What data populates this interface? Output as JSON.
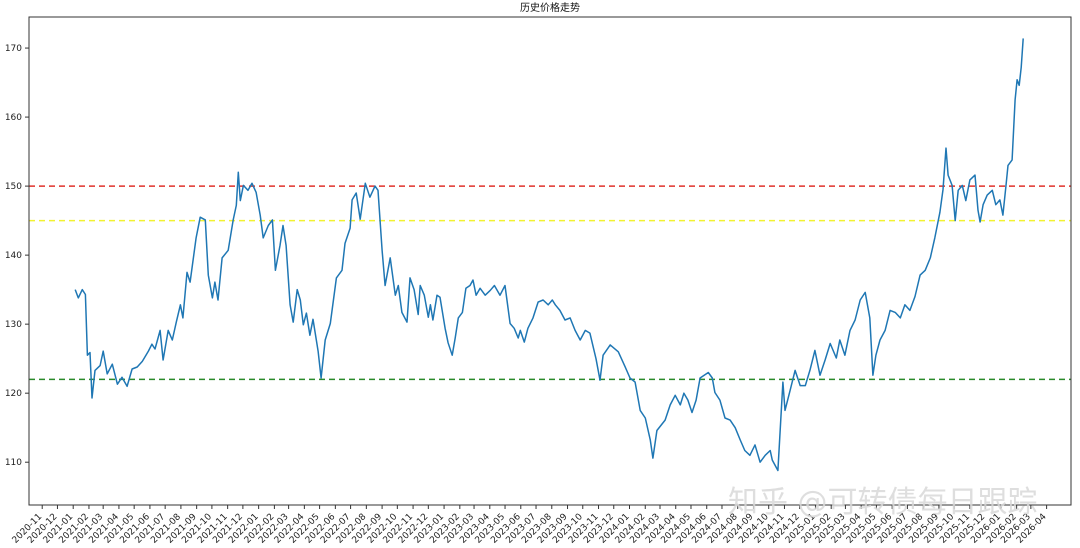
{
  "chart_data": {
    "type": "line",
    "title": "历史价格走势",
    "xlabel": "",
    "ylabel": "",
    "xlim": [
      "2020-10-06",
      "2026-05-19"
    ],
    "ylim": [
      103.8,
      174.5
    ],
    "y_ticks": [
      110,
      120,
      130,
      140,
      150,
      160,
      170
    ],
    "x_ticks": [
      "2020-11",
      "2020-12",
      "2021-01",
      "2021-02",
      "2021-03",
      "2021-04",
      "2021-05",
      "2021-06",
      "2021-07",
      "2021-08",
      "2021-09",
      "2021-10",
      "2021-11",
      "2021-12",
      "2022-01",
      "2022-02",
      "2022-03",
      "2022-04",
      "2022-05",
      "2022-06",
      "2022-07",
      "2022-08",
      "2022-09",
      "2022-10",
      "2022-11",
      "2022-12",
      "2023-01",
      "2023-02",
      "2023-03",
      "2023-04",
      "2023-05",
      "2023-06",
      "2023-07",
      "2023-08",
      "2023-09",
      "2023-10",
      "2023-11",
      "2023-12",
      "2024-01",
      "2024-02",
      "2024-03",
      "2024-04",
      "2024-05",
      "2024-06",
      "2024-07",
      "2024-08",
      "2024-09",
      "2024-10",
      "2024-11",
      "2024-12",
      "2025-01",
      "2025-02",
      "2025-03",
      "2025-04",
      "2025-05",
      "2025-06",
      "2025-07",
      "2025-08",
      "2025-09",
      "2025-10",
      "2025-11",
      "2025-12",
      "2026-01",
      "2026-02",
      "2026-03",
      "2026-04"
    ],
    "grid": false,
    "series": [
      {
        "color": "#1f77b4",
        "points": [
          [
            "2021-01-05",
            135.0
          ],
          [
            "2021-01-11",
            133.8
          ],
          [
            "2021-01-19",
            135.0
          ],
          [
            "2021-01-25",
            134.3
          ],
          [
            "2021-01-29",
            125.5
          ],
          [
            "2021-02-03",
            125.9
          ],
          [
            "2021-02-07",
            119.3
          ],
          [
            "2021-02-13",
            123.3
          ],
          [
            "2021-02-23",
            124.0
          ],
          [
            "2021-03-01",
            126.1
          ],
          [
            "2021-03-09",
            122.8
          ],
          [
            "2021-03-19",
            124.2
          ],
          [
            "2021-03-29",
            121.3
          ],
          [
            "2021-04-07",
            122.3
          ],
          [
            "2021-04-17",
            121.0
          ],
          [
            "2021-04-27",
            123.5
          ],
          [
            "2021-05-07",
            123.8
          ],
          [
            "2021-05-17",
            124.6
          ],
          [
            "2021-05-29",
            126.1
          ],
          [
            "2021-06-05",
            127.1
          ],
          [
            "2021-06-11",
            126.4
          ],
          [
            "2021-06-21",
            129.1
          ],
          [
            "2021-06-27",
            124.8
          ],
          [
            "2021-07-07",
            129.1
          ],
          [
            "2021-07-15",
            127.7
          ],
          [
            "2021-07-23",
            130.3
          ],
          [
            "2021-07-31",
            132.8
          ],
          [
            "2021-08-05",
            130.9
          ],
          [
            "2021-08-13",
            137.5
          ],
          [
            "2021-08-19",
            136.1
          ],
          [
            "2021-08-31",
            142.5
          ],
          [
            "2021-09-08",
            145.5
          ],
          [
            "2021-09-18",
            145.1
          ],
          [
            "2021-09-24",
            137.1
          ],
          [
            "2021-10-02",
            133.8
          ],
          [
            "2021-10-07",
            136.1
          ],
          [
            "2021-10-13",
            133.5
          ],
          [
            "2021-10-21",
            139.6
          ],
          [
            "2021-11-02",
            140.7
          ],
          [
            "2021-11-12",
            145.1
          ],
          [
            "2021-11-18",
            147.2
          ],
          [
            "2021-11-22",
            152.0
          ],
          [
            "2021-11-26",
            147.9
          ],
          [
            "2021-12-02",
            150.1
          ],
          [
            "2021-12-11",
            149.4
          ],
          [
            "2021-12-19",
            150.4
          ],
          [
            "2021-12-27",
            149.1
          ],
          [
            "2022-01-04",
            145.8
          ],
          [
            "2022-01-10",
            142.5
          ],
          [
            "2022-01-20",
            144.3
          ],
          [
            "2022-01-28",
            145.1
          ],
          [
            "2022-02-03",
            137.8
          ],
          [
            "2022-02-12",
            141.4
          ],
          [
            "2022-02-18",
            144.3
          ],
          [
            "2022-02-24",
            141.4
          ],
          [
            "2022-03-04",
            132.8
          ],
          [
            "2022-03-10",
            130.3
          ],
          [
            "2022-03-18",
            135.0
          ],
          [
            "2022-03-24",
            133.5
          ],
          [
            "2022-03-30",
            129.9
          ],
          [
            "2022-04-05",
            131.6
          ],
          [
            "2022-04-12",
            128.4
          ],
          [
            "2022-04-18",
            130.7
          ],
          [
            "2022-04-28",
            126.1
          ],
          [
            "2022-05-04",
            122.2
          ],
          [
            "2022-05-12",
            127.7
          ],
          [
            "2022-05-22",
            130.1
          ],
          [
            "2022-06-03",
            136.7
          ],
          [
            "2022-06-14",
            137.8
          ],
          [
            "2022-06-20",
            141.7
          ],
          [
            "2022-06-30",
            143.9
          ],
          [
            "2022-07-04",
            148.0
          ],
          [
            "2022-07-12",
            149.0
          ],
          [
            "2022-07-20",
            145.2
          ],
          [
            "2022-07-30",
            150.4
          ],
          [
            "2022-08-08",
            148.4
          ],
          [
            "2022-08-18",
            150.0
          ],
          [
            "2022-08-24",
            149.4
          ],
          [
            "2022-09-01",
            140.7
          ],
          [
            "2022-09-07",
            135.6
          ],
          [
            "2022-09-17",
            139.6
          ],
          [
            "2022-09-27",
            134.2
          ],
          [
            "2022-10-03",
            135.6
          ],
          [
            "2022-10-10",
            131.7
          ],
          [
            "2022-10-20",
            130.3
          ],
          [
            "2022-10-26",
            136.7
          ],
          [
            "2022-11-03",
            135.0
          ],
          [
            "2022-11-11",
            131.4
          ],
          [
            "2022-11-15",
            135.6
          ],
          [
            "2022-11-23",
            134.2
          ],
          [
            "2022-12-01",
            131.0
          ],
          [
            "2022-12-05",
            132.8
          ],
          [
            "2022-12-10",
            130.6
          ],
          [
            "2022-12-18",
            134.2
          ],
          [
            "2022-12-24",
            133.9
          ],
          [
            "2023-01-03",
            129.4
          ],
          [
            "2023-01-09",
            127.3
          ],
          [
            "2023-01-17",
            125.5
          ],
          [
            "2023-01-23",
            128.0
          ],
          [
            "2023-01-29",
            130.9
          ],
          [
            "2023-02-06",
            131.7
          ],
          [
            "2023-02-13",
            135.2
          ],
          [
            "2023-02-21",
            135.6
          ],
          [
            "2023-02-27",
            136.4
          ],
          [
            "2023-03-05",
            134.2
          ],
          [
            "2023-03-13",
            135.2
          ],
          [
            "2023-03-23",
            134.2
          ],
          [
            "2023-04-02",
            134.9
          ],
          [
            "2023-04-10",
            135.6
          ],
          [
            "2023-04-21",
            134.2
          ],
          [
            "2023-05-01",
            135.6
          ],
          [
            "2023-05-11",
            130.1
          ],
          [
            "2023-05-19",
            129.4
          ],
          [
            "2023-05-27",
            128.0
          ],
          [
            "2023-05-31",
            129.1
          ],
          [
            "2023-06-08",
            127.4
          ],
          [
            "2023-06-15",
            129.4
          ],
          [
            "2023-06-25",
            130.9
          ],
          [
            "2023-07-05",
            133.2
          ],
          [
            "2023-07-15",
            133.5
          ],
          [
            "2023-07-25",
            132.8
          ],
          [
            "2023-08-02",
            133.5
          ],
          [
            "2023-08-08",
            132.8
          ],
          [
            "2023-08-17",
            132.0
          ],
          [
            "2023-08-27",
            130.6
          ],
          [
            "2023-09-06",
            130.9
          ],
          [
            "2023-09-16",
            129.1
          ],
          [
            "2023-09-26",
            127.7
          ],
          [
            "2023-10-06",
            129.1
          ],
          [
            "2023-10-15",
            128.7
          ],
          [
            "2023-10-27",
            125.0
          ],
          [
            "2023-11-04",
            121.9
          ],
          [
            "2023-11-10",
            125.5
          ],
          [
            "2023-11-24",
            127.0
          ],
          [
            "2023-12-10",
            126.0
          ],
          [
            "2023-12-23",
            123.9
          ],
          [
            "2024-01-02",
            122.2
          ],
          [
            "2024-01-12",
            121.6
          ],
          [
            "2024-01-22",
            117.5
          ],
          [
            "2024-02-01",
            116.4
          ],
          [
            "2024-02-11",
            113.2
          ],
          [
            "2024-02-16",
            110.6
          ],
          [
            "2024-02-24",
            114.6
          ],
          [
            "2024-03-11",
            116.1
          ],
          [
            "2024-03-21",
            118.3
          ],
          [
            "2024-03-31",
            119.7
          ],
          [
            "2024-04-10",
            118.3
          ],
          [
            "2024-04-17",
            120.0
          ],
          [
            "2024-04-25",
            119.0
          ],
          [
            "2024-05-03",
            117.2
          ],
          [
            "2024-05-11",
            119.0
          ],
          [
            "2024-05-19",
            122.2
          ],
          [
            "2024-06-04",
            123.0
          ],
          [
            "2024-06-12",
            122.2
          ],
          [
            "2024-06-17",
            120.1
          ],
          [
            "2024-06-27",
            119.0
          ],
          [
            "2024-07-07",
            116.4
          ],
          [
            "2024-07-17",
            116.1
          ],
          [
            "2024-07-27",
            115.0
          ],
          [
            "2024-08-06",
            113.2
          ],
          [
            "2024-08-15",
            111.7
          ],
          [
            "2024-08-25",
            111.0
          ],
          [
            "2024-09-04",
            112.5
          ],
          [
            "2024-09-14",
            110.0
          ],
          [
            "2024-09-24",
            111.0
          ],
          [
            "2024-10-04",
            111.7
          ],
          [
            "2024-10-08",
            110.3
          ],
          [
            "2024-10-19",
            108.8
          ],
          [
            "2024-10-29",
            121.6
          ],
          [
            "2024-11-02",
            117.5
          ],
          [
            "2024-11-12",
            120.4
          ],
          [
            "2024-11-22",
            123.3
          ],
          [
            "2024-12-02",
            121.1
          ],
          [
            "2024-12-12",
            121.1
          ],
          [
            "2024-12-21",
            123.3
          ],
          [
            "2024-12-31",
            126.2
          ],
          [
            "2025-01-10",
            122.6
          ],
          [
            "2025-01-20",
            124.8
          ],
          [
            "2025-01-30",
            127.2
          ],
          [
            "2025-02-11",
            125.1
          ],
          [
            "2025-02-18",
            127.7
          ],
          [
            "2025-02-28",
            125.5
          ],
          [
            "2025-03-10",
            129.1
          ],
          [
            "2025-03-20",
            130.6
          ],
          [
            "2025-03-30",
            133.5
          ],
          [
            "2025-04-09",
            134.6
          ],
          [
            "2025-04-18",
            130.9
          ],
          [
            "2025-04-24",
            122.6
          ],
          [
            "2025-04-30",
            125.5
          ],
          [
            "2025-05-08",
            127.7
          ],
          [
            "2025-05-18",
            129.1
          ],
          [
            "2025-05-28",
            132.0
          ],
          [
            "2025-06-07",
            131.7
          ],
          [
            "2025-06-17",
            130.9
          ],
          [
            "2025-06-26",
            132.8
          ],
          [
            "2025-07-06",
            132.0
          ],
          [
            "2025-07-16",
            134.0
          ],
          [
            "2025-07-26",
            137.1
          ],
          [
            "2025-08-05",
            137.8
          ],
          [
            "2025-08-15",
            139.6
          ],
          [
            "2025-08-24",
            142.5
          ],
          [
            "2025-09-03",
            146.2
          ],
          [
            "2025-09-09",
            149.5
          ],
          [
            "2025-09-15",
            155.5
          ],
          [
            "2025-09-19",
            151.6
          ],
          [
            "2025-09-27",
            150.1
          ],
          [
            "2025-10-03",
            145.0
          ],
          [
            "2025-10-09",
            149.4
          ],
          [
            "2025-10-17",
            150.1
          ],
          [
            "2025-10-24",
            147.9
          ],
          [
            "2025-11-01",
            150.9
          ],
          [
            "2025-11-11",
            151.6
          ],
          [
            "2025-11-17",
            146.5
          ],
          [
            "2025-11-21",
            144.8
          ],
          [
            "2025-11-27",
            147.3
          ],
          [
            "2025-12-05",
            148.7
          ],
          [
            "2025-12-15",
            149.4
          ],
          [
            "2025-12-22",
            147.3
          ],
          [
            "2025-12-30",
            148.0
          ],
          [
            "2026-01-05",
            145.8
          ],
          [
            "2026-01-11",
            150.1
          ],
          [
            "2026-01-15",
            153.0
          ],
          [
            "2026-01-23",
            153.8
          ],
          [
            "2026-01-29",
            162.5
          ],
          [
            "2026-02-02",
            165.4
          ],
          [
            "2026-02-06",
            164.6
          ],
          [
            "2026-02-10",
            167.2
          ],
          [
            "2026-02-14",
            171.4
          ]
        ]
      }
    ],
    "hlines": [
      {
        "value": 150,
        "color": "#e0302a",
        "style": "dashed"
      },
      {
        "value": 145,
        "color": "#f2f230",
        "style": "dashed"
      },
      {
        "value": 122,
        "color": "#2a8a2a",
        "style": "dashed"
      }
    ]
  },
  "watermark": "知乎 @可转债每日跟踪"
}
